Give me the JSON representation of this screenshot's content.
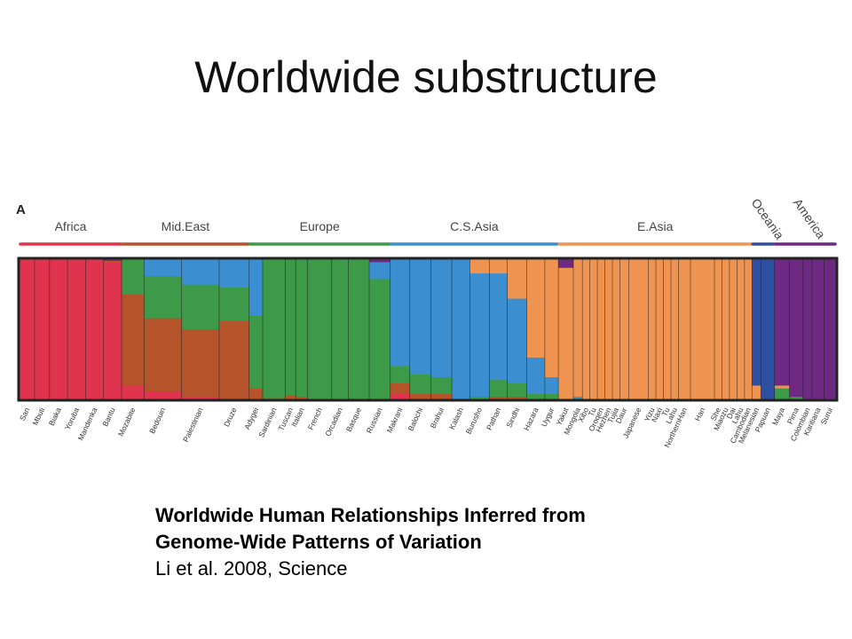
{
  "slide": {
    "title": "Worldwide substructure"
  },
  "caption": {
    "line1": "Worldwide Human Relationships Inferred from",
    "line2": "Genome-Wide Patterns of Variation",
    "line3": "Li et al. 2008, Science"
  },
  "chart_data": {
    "type": "bar",
    "panel_label": "A",
    "subtype": "stacked-ancestry",
    "components": [
      {
        "key": "red",
        "color": "#e0344e"
      },
      {
        "key": "brown",
        "color": "#b5542a"
      },
      {
        "key": "green",
        "color": "#3c9a48"
      },
      {
        "key": "blue",
        "color": "#3b8fd0"
      },
      {
        "key": "orange",
        "color": "#ef9450"
      },
      {
        "key": "navy",
        "color": "#2f4fa0"
      },
      {
        "key": "purple",
        "color": "#6e2a82"
      }
    ],
    "regions": [
      {
        "name": "Africa",
        "color": "#e0344e",
        "rotated": false
      },
      {
        "name": "Mid.East",
        "color": "#b5542a",
        "rotated": false
      },
      {
        "name": "Europe",
        "color": "#3c9a48",
        "rotated": false
      },
      {
        "name": "C.S.Asia",
        "color": "#3b8fd0",
        "rotated": false
      },
      {
        "name": "E.Asia",
        "color": "#ef9450",
        "rotated": false
      },
      {
        "name": "Oceania",
        "color": "#2f4fa0",
        "rotated": true
      },
      {
        "name": "America",
        "color": "#6e2a82",
        "rotated": true
      }
    ],
    "populations": [
      {
        "name": "San",
        "region": "Africa",
        "size": 1,
        "props": [
          1,
          0,
          0,
          0,
          0,
          0,
          0
        ]
      },
      {
        "name": "Mbuti",
        "region": "Africa",
        "size": 1,
        "props": [
          1,
          0,
          0,
          0,
          0,
          0,
          0
        ]
      },
      {
        "name": "Biaka",
        "region": "Africa",
        "size": 1.2,
        "props": [
          1,
          0,
          0,
          0,
          0,
          0,
          0
        ]
      },
      {
        "name": "Yoruba",
        "region": "Africa",
        "size": 1.2,
        "props": [
          1,
          0,
          0,
          0,
          0,
          0,
          0
        ]
      },
      {
        "name": "Mandenka",
        "region": "Africa",
        "size": 1.2,
        "props": [
          1,
          0,
          0,
          0,
          0,
          0,
          0
        ]
      },
      {
        "name": "Bantu",
        "region": "Africa",
        "size": 1.2,
        "props": [
          0.98,
          0.01,
          0,
          0,
          0,
          0,
          0.01
        ]
      },
      {
        "name": "Mozabite",
        "region": "Mid.East",
        "size": 1.5,
        "props": [
          0.1,
          0.65,
          0.25,
          0,
          0,
          0,
          0
        ]
      },
      {
        "name": "Bedouin",
        "region": "Mid.East",
        "size": 2.5,
        "props": [
          0.06,
          0.52,
          0.3,
          0.12,
          0,
          0,
          0
        ]
      },
      {
        "name": "Palestinian",
        "region": "Mid.East",
        "size": 2.5,
        "props": [
          0.02,
          0.48,
          0.32,
          0.18,
          0,
          0,
          0
        ]
      },
      {
        "name": "Druze",
        "region": "Mid.East",
        "size": 2,
        "props": [
          0,
          0.56,
          0.24,
          0.2,
          0,
          0,
          0
        ]
      },
      {
        "name": "Adygei",
        "region": "Europe",
        "size": 0.9,
        "props": [
          0,
          0.08,
          0.52,
          0.4,
          0,
          0,
          0
        ]
      },
      {
        "name": "Sardinian",
        "region": "Europe",
        "size": 1.5,
        "props": [
          0,
          0.01,
          0.99,
          0,
          0,
          0,
          0
        ]
      },
      {
        "name": "Tuscan",
        "region": "Europe",
        "size": 0.7,
        "props": [
          0,
          0.03,
          0.97,
          0,
          0,
          0,
          0
        ]
      },
      {
        "name": "Italian",
        "region": "Europe",
        "size": 0.8,
        "props": [
          0,
          0.02,
          0.98,
          0,
          0,
          0,
          0
        ]
      },
      {
        "name": "French",
        "region": "Europe",
        "size": 1.6,
        "props": [
          0,
          0,
          1,
          0,
          0,
          0,
          0
        ]
      },
      {
        "name": "Orcadian",
        "region": "Europe",
        "size": 1.1,
        "props": [
          0,
          0,
          1,
          0,
          0,
          0,
          0
        ]
      },
      {
        "name": "Basque",
        "region": "Europe",
        "size": 1.4,
        "props": [
          0,
          0,
          1,
          0,
          0,
          0,
          0
        ]
      },
      {
        "name": "Russian",
        "region": "Europe",
        "size": 1.4,
        "props": [
          0,
          0,
          0.86,
          0.12,
          0,
          0,
          0.02
        ]
      },
      {
        "name": "Makrani",
        "region": "C.S.Asia",
        "size": 1.3,
        "props": [
          0.04,
          0.08,
          0.12,
          0.76,
          0,
          0,
          0
        ]
      },
      {
        "name": "Balochi",
        "region": "C.S.Asia",
        "size": 1.4,
        "props": [
          0,
          0.04,
          0.14,
          0.82,
          0,
          0,
          0
        ]
      },
      {
        "name": "Brahui",
        "region": "C.S.Asia",
        "size": 1.4,
        "props": [
          0,
          0.04,
          0.12,
          0.84,
          0,
          0,
          0
        ]
      },
      {
        "name": "Kalash",
        "region": "C.S.Asia",
        "size": 1.2,
        "props": [
          0,
          0,
          0,
          1,
          0,
          0,
          0
        ]
      },
      {
        "name": "Burusho",
        "region": "C.S.Asia",
        "size": 1.3,
        "props": [
          0,
          0,
          0.02,
          0.88,
          0.1,
          0,
          0
        ]
      },
      {
        "name": "Pathan",
        "region": "C.S.Asia",
        "size": 1.2,
        "props": [
          0,
          0.02,
          0.12,
          0.76,
          0.1,
          0,
          0
        ]
      },
      {
        "name": "Sindhi",
        "region": "C.S.Asia",
        "size": 1.3,
        "props": [
          0,
          0.02,
          0.1,
          0.6,
          0.28,
          0,
          0
        ]
      },
      {
        "name": "Hazara",
        "region": "C.S.Asia",
        "size": 1.2,
        "props": [
          0,
          0,
          0.04,
          0.26,
          0.7,
          0,
          0
        ]
      },
      {
        "name": "Uygur",
        "region": "C.S.Asia",
        "size": 0.9,
        "props": [
          0,
          0,
          0.04,
          0.12,
          0.84,
          0,
          0
        ]
      },
      {
        "name": "Yakut",
        "region": "E.Asia",
        "size": 1,
        "props": [
          0,
          0,
          0,
          0,
          0.94,
          0,
          0.06
        ]
      },
      {
        "name": "Mongola",
        "region": "E.Asia",
        "size": 0.6,
        "props": [
          0,
          0,
          0.01,
          0.01,
          0.98,
          0,
          0
        ]
      },
      {
        "name": "Xibo",
        "region": "E.Asia",
        "size": 0.5,
        "props": [
          0,
          0,
          0,
          0,
          1,
          0,
          0
        ]
      },
      {
        "name": "Tu",
        "region": "E.Asia",
        "size": 0.5,
        "props": [
          0,
          0,
          0,
          0,
          1,
          0,
          0
        ]
      },
      {
        "name": "Oroqen",
        "region": "E.Asia",
        "size": 0.5,
        "props": [
          0,
          0,
          0,
          0,
          1,
          0,
          0
        ]
      },
      {
        "name": "Hezhen",
        "region": "E.Asia",
        "size": 0.5,
        "props": [
          0,
          0,
          0,
          0,
          1,
          0,
          0
        ]
      },
      {
        "name": "Tujia",
        "region": "E.Asia",
        "size": 0.5,
        "props": [
          0,
          0,
          0,
          0,
          1,
          0,
          0
        ]
      },
      {
        "name": "Daur",
        "region": "E.Asia",
        "size": 0.6,
        "props": [
          0,
          0,
          0,
          0,
          1,
          0,
          0
        ]
      },
      {
        "name": "Japanese",
        "region": "E.Asia",
        "size": 1.3,
        "props": [
          0,
          0,
          0,
          0,
          1,
          0,
          0
        ]
      },
      {
        "name": "Yizu",
        "region": "E.Asia",
        "size": 0.5,
        "props": [
          0,
          0,
          0,
          0,
          1,
          0,
          0
        ]
      },
      {
        "name": "Naxi",
        "region": "E.Asia",
        "size": 0.5,
        "props": [
          0,
          0,
          0,
          0,
          1,
          0,
          0
        ]
      },
      {
        "name": "Tu",
        "region": "E.Asia",
        "size": 0.5,
        "props": [
          0,
          0,
          0,
          0,
          1,
          0,
          0
        ]
      },
      {
        "name": "Lahu",
        "region": "E.Asia",
        "size": 0.5,
        "props": [
          0,
          0,
          0,
          0,
          1,
          0,
          0
        ]
      },
      {
        "name": "NorthernHan",
        "region": "E.Asia",
        "size": 0.8,
        "props": [
          0,
          0,
          0,
          0,
          1,
          0,
          0
        ]
      },
      {
        "name": "Han",
        "region": "E.Asia",
        "size": 1.6,
        "props": [
          0,
          0,
          0,
          0,
          1,
          0,
          0
        ]
      },
      {
        "name": "She",
        "region": "E.Asia",
        "size": 0.5,
        "props": [
          0,
          0,
          0,
          0,
          1,
          0,
          0
        ]
      },
      {
        "name": "Miaozu",
        "region": "E.Asia",
        "size": 0.5,
        "props": [
          0,
          0,
          0,
          0,
          1,
          0,
          0
        ]
      },
      {
        "name": "Dai",
        "region": "E.Asia",
        "size": 0.5,
        "props": [
          0,
          0,
          0,
          0,
          1,
          0,
          0
        ]
      },
      {
        "name": "Lahu",
        "region": "E.Asia",
        "size": 0.5,
        "props": [
          0,
          0,
          0,
          0,
          1,
          0,
          0
        ]
      },
      {
        "name": "Cambodian",
        "region": "E.Asia",
        "size": 0.5,
        "props": [
          0,
          0,
          0,
          0,
          1,
          0,
          0
        ]
      },
      {
        "name": "Melanesian",
        "region": "Oceania",
        "size": 0.6,
        "props": [
          0,
          0,
          0,
          0,
          0.1,
          0.9,
          0
        ]
      },
      {
        "name": "Papuan",
        "region": "Oceania",
        "size": 0.9,
        "props": [
          0,
          0,
          0,
          0,
          0,
          1,
          0
        ]
      },
      {
        "name": "Maya",
        "region": "America",
        "size": 1,
        "props": [
          0,
          0,
          0.08,
          0,
          0.02,
          0,
          0.9
        ]
      },
      {
        "name": "Pima",
        "region": "America",
        "size": 0.9,
        "props": [
          0,
          0,
          0.02,
          0,
          0,
          0,
          0.98
        ]
      },
      {
        "name": "Colombian",
        "region": "America",
        "size": 0.6,
        "props": [
          0,
          0,
          0,
          0,
          0,
          0,
          1
        ]
      },
      {
        "name": "Karitiana",
        "region": "America",
        "size": 0.8,
        "props": [
          0,
          0,
          0,
          0,
          0,
          0,
          1
        ]
      },
      {
        "name": "Surui",
        "region": "America",
        "size": 0.8,
        "props": [
          0,
          0,
          0,
          0,
          0,
          0,
          1
        ]
      }
    ]
  }
}
